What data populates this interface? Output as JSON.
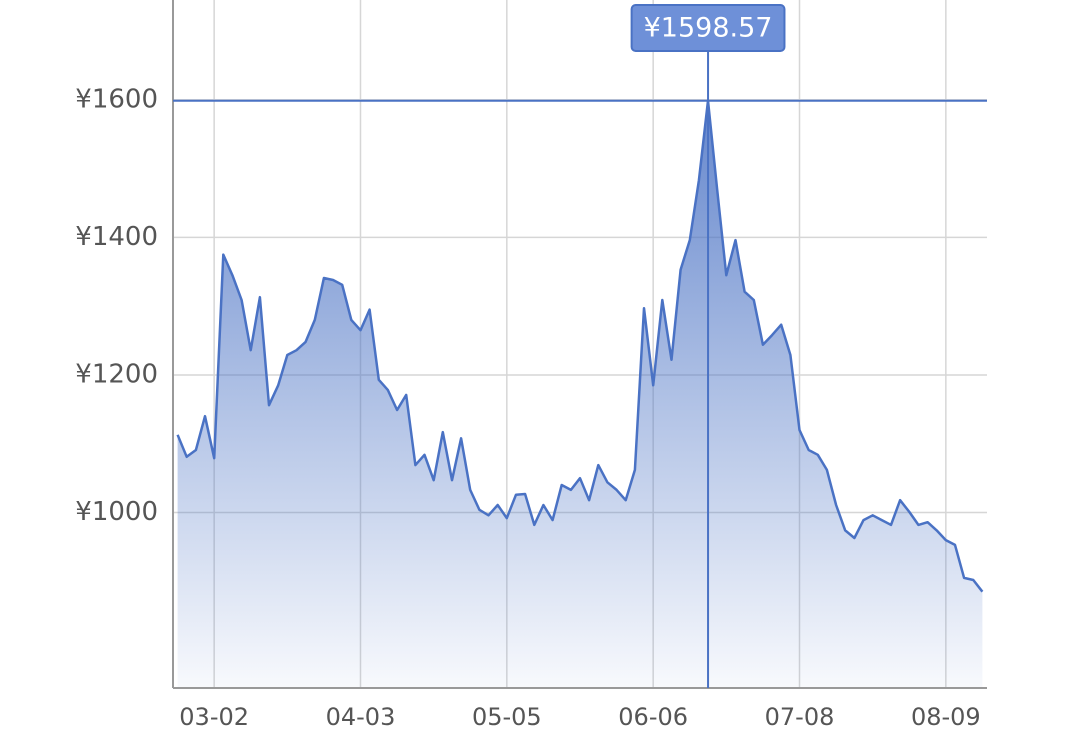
{
  "chart_data": {
    "type": "area",
    "categories": [
      null,
      null,
      null,
      null,
      "03-02",
      null,
      null,
      null,
      null,
      null,
      null,
      null,
      null,
      null,
      null,
      null,
      null,
      null,
      null,
      null,
      "04-03",
      null,
      null,
      null,
      null,
      null,
      null,
      null,
      null,
      null,
      null,
      null,
      null,
      null,
      null,
      null,
      "05-05",
      null,
      null,
      null,
      null,
      null,
      null,
      null,
      null,
      null,
      null,
      null,
      null,
      null,
      null,
      null,
      "06-06",
      null,
      null,
      null,
      null,
      null,
      null,
      null,
      null,
      null,
      null,
      null,
      null,
      null,
      null,
      null,
      "07-08",
      null,
      null,
      null,
      null,
      null,
      null,
      null,
      null,
      null,
      null,
      null,
      null,
      null,
      null,
      null,
      "08-09",
      null,
      null,
      null,
      null
    ],
    "series": [
      {
        "color": "#4a72c4",
        "values": [
          1113,
          1081,
          1091,
          1140,
          1079,
          1375,
          1345,
          1309,
          1236,
          1313,
          1156,
          1185,
          1229,
          1236,
          1248,
          1280,
          1341,
          1338,
          1331,
          1280,
          1265,
          1295,
          1193,
          1178,
          1149,
          1171,
          1069,
          1084,
          1047,
          1117,
          1047,
          1108,
          1033,
          1004,
          996,
          1011,
          992,
          1026,
          1027,
          982,
          1011,
          989,
          1040,
          1033,
          1050,
          1018,
          1069,
          1044,
          1033,
          1018,
          1062,
          1297,
          1185,
          1309,
          1222,
          1353,
          1396,
          1483,
          1598.57,
          1469,
          1345,
          1396,
          1321,
          1309,
          1244,
          1258,
          1273,
          1229,
          1120,
          1091,
          1084,
          1062,
          1011,
          974,
          963,
          989,
          996,
          989,
          982,
          1018,
          1001,
          982,
          986,
          974,
          960,
          953,
          905,
          902,
          885
        ]
      }
    ],
    "ylim": [
      745,
      1745
    ],
    "yticks": [
      {
        "value": 1000,
        "label": "¥1000"
      },
      {
        "value": 1200,
        "label": "¥1200"
      },
      {
        "value": 1400,
        "label": "¥1400"
      },
      {
        "value": 1600,
        "label": "¥1600"
      }
    ],
    "grid": true,
    "tooltip": {
      "value": 1598.57,
      "label": "¥1598.57"
    }
  }
}
